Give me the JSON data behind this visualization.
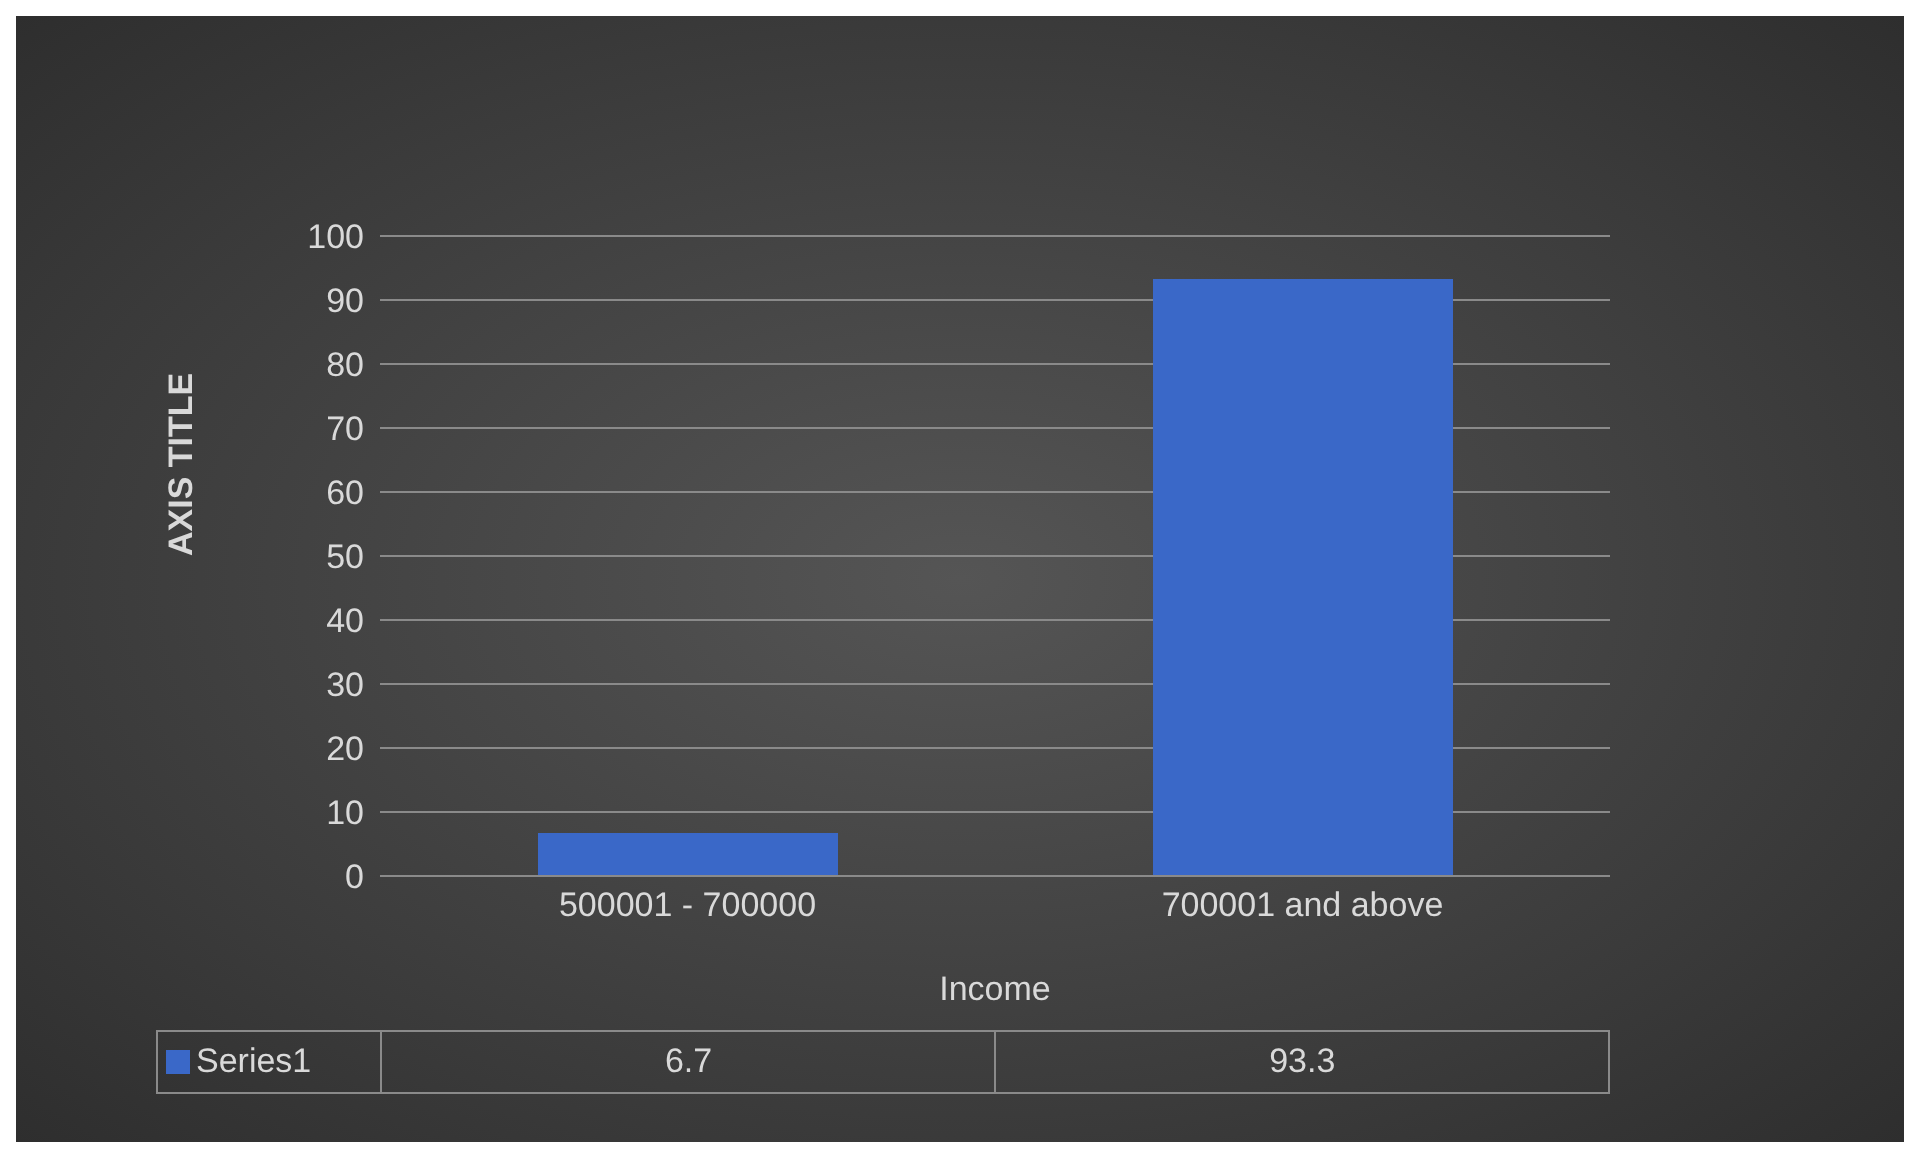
{
  "chart_data": {
    "type": "bar",
    "xlabel": "Income",
    "ylabel": "AXIS TITLE",
    "categories": [
      "500001 - 700000",
      "700001 and above"
    ],
    "series": [
      {
        "name": "Series1",
        "color": "#3a68c8",
        "values": [
          6.7,
          93.3
        ]
      }
    ],
    "ylim": [
      0,
      100
    ],
    "yticks": [
      0,
      10,
      20,
      30,
      40,
      50,
      60,
      70,
      80,
      90,
      100
    ],
    "grid": "y",
    "legend": "bottom",
    "data_labels": true
  }
}
